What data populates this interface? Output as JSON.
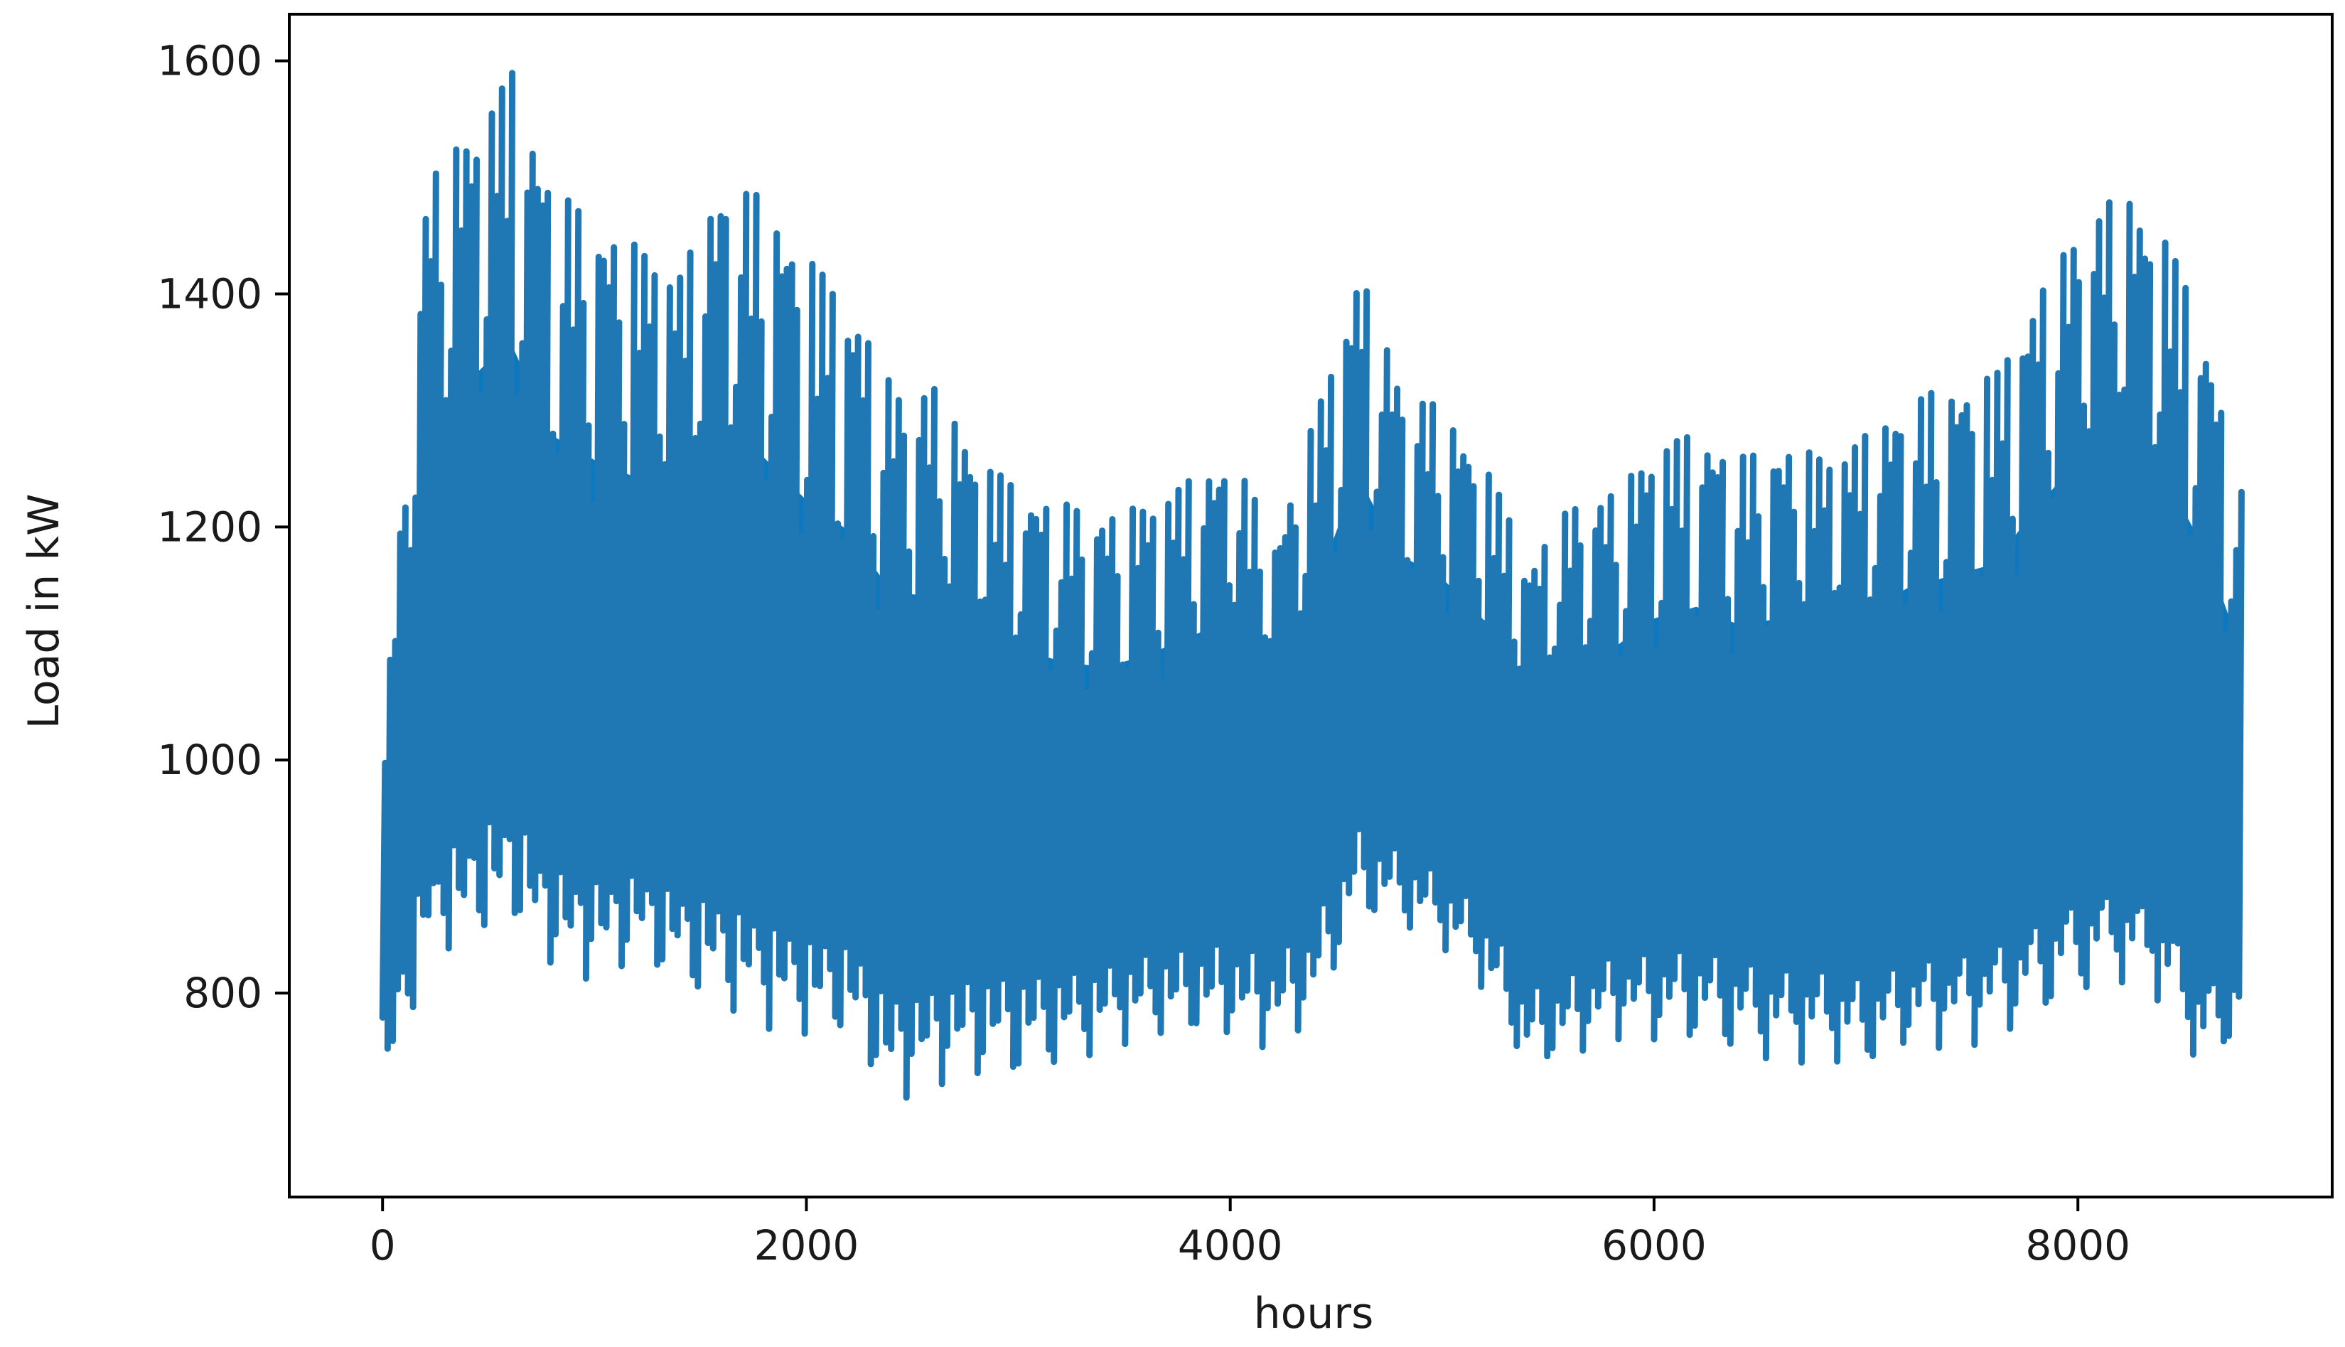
{
  "chart_data": {
    "type": "line",
    "title": "",
    "xlabel": "hours",
    "ylabel": "Load in kW",
    "xlim": [
      -440,
      9200
    ],
    "ylim": [
      625,
      1640
    ],
    "x_ticks": [
      0,
      2000,
      4000,
      6000,
      8000
    ],
    "x_tick_labels": [
      "0",
      "2000",
      "4000",
      "6000",
      "8000"
    ],
    "y_ticks": [
      800,
      1000,
      1200,
      1400,
      1600
    ],
    "y_tick_labels": [
      "800",
      "1000",
      "1200",
      "1400",
      "1600"
    ],
    "grid": false,
    "legend": "none",
    "colors": {
      "series": "#1f77b4",
      "series_fill": "#0b78bf"
    },
    "series": [
      {
        "hours": [
          0,
          200,
          400,
          600,
          800,
          1000,
          1200,
          1400,
          1600,
          1800,
          2000,
          2200,
          2400,
          2600,
          2800,
          3000,
          3200,
          3400,
          3600,
          3800,
          4000,
          4200,
          4400,
          4600,
          4800,
          5000,
          5200,
          5400,
          5600,
          5800,
          6000,
          6200,
          6400,
          6600,
          6800,
          7000,
          7200,
          7400,
          7600,
          7800,
          8000,
          8200,
          8400,
          8600,
          8760
        ],
        "upper": [
          1030,
          1500,
          1540,
          1590,
          1490,
          1460,
          1440,
          1420,
          1500,
          1480,
          1430,
          1390,
          1320,
          1320,
          1260,
          1230,
          1220,
          1210,
          1220,
          1240,
          1260,
          1190,
          1300,
          1420,
          1320,
          1300,
          1250,
          1170,
          1220,
          1230,
          1270,
          1280,
          1260,
          1270,
          1260,
          1280,
          1310,
          1320,
          1330,
          1400,
          1460,
          1490,
          1450,
          1360,
          1230
        ],
        "lower": [
          680,
          830,
          840,
          860,
          820,
          810,
          830,
          810,
          790,
          770,
          760,
          760,
          700,
          720,
          730,
          730,
          740,
          750,
          760,
          760,
          760,
          750,
          780,
          870,
          860,
          840,
          800,
          730,
          740,
          760,
          760,
          760,
          750,
          740,
          740,
          730,
          750,
          750,
          760,
          780,
          800,
          810,
          790,
          720,
          760
        ],
        "center": [
          900,
          1000,
          1060,
          1080,
          1020,
          1010,
          1000,
          990,
          1000,
          990,
          970,
          960,
          930,
          920,
          930,
          930,
          920,
          920,
          930,
          940,
          950,
          930,
          960,
          1030,
          1000,
          980,
          960,
          900,
          920,
          930,
          940,
          950,
          940,
          940,
          940,
          940,
          950,
          960,
          970,
          990,
          1010,
          1020,
          1000,
          960,
          940
        ]
      }
    ]
  }
}
